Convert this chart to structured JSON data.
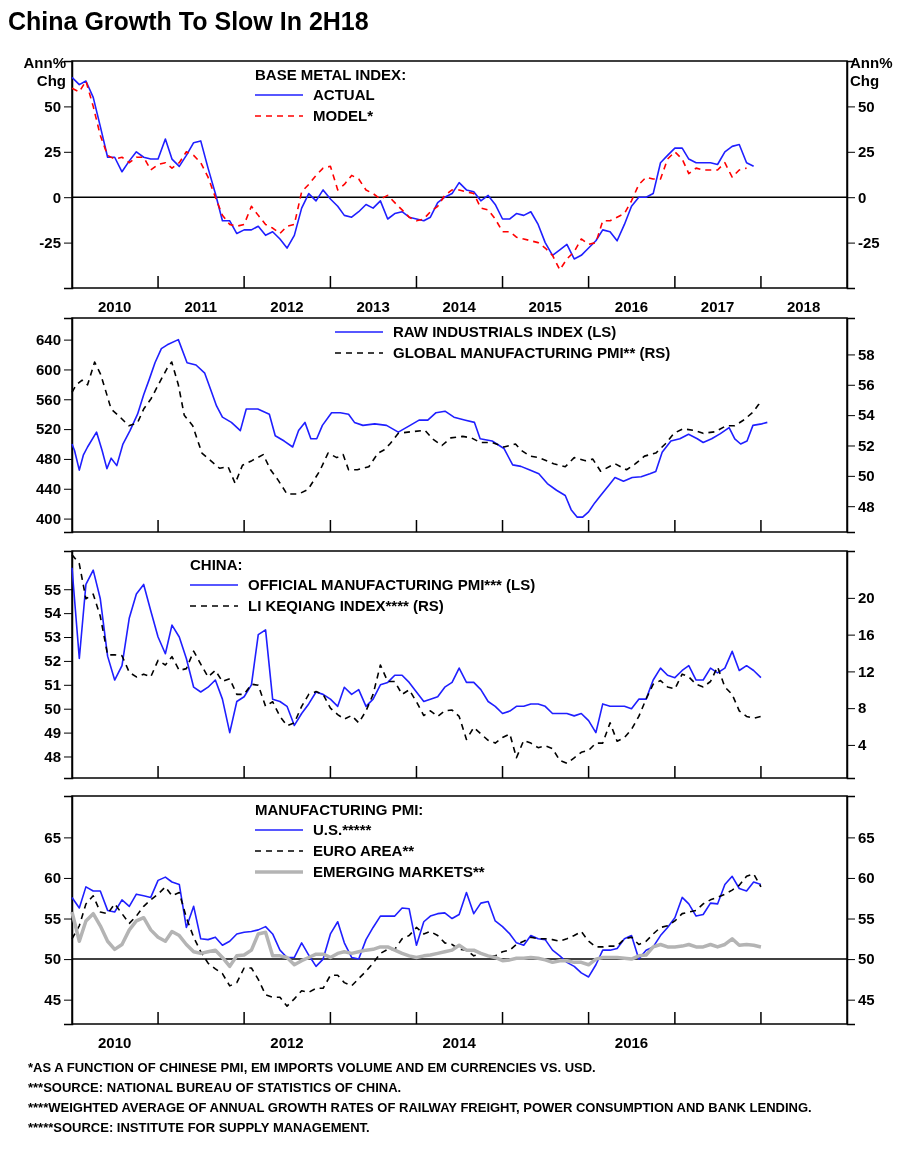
{
  "chart_data": [
    {
      "type": "line",
      "title": "China Growth To Slow In 2H18",
      "ylabel": "Ann% Chg",
      "y2label": "Ann% Chg",
      "legend_title": "BASE METAL INDEX:",
      "legend": "top",
      "xlim": [
        "2010-01",
        "2019-01"
      ],
      "xticks": [
        {
          "value": "2010-07",
          "label": "2010"
        },
        {
          "value": "2011-01",
          "label": null
        },
        {
          "value": "2011-07",
          "label": "2011"
        },
        {
          "value": "2012-01",
          "label": null
        },
        {
          "value": "2012-07",
          "label": "2012"
        },
        {
          "value": "2013-01",
          "label": null
        },
        {
          "value": "2013-07",
          "label": "2013"
        },
        {
          "value": "2014-01",
          "label": null
        },
        {
          "value": "2014-07",
          "label": "2014"
        },
        {
          "value": "2015-01",
          "label": null
        },
        {
          "value": "2015-07",
          "label": "2015"
        },
        {
          "value": "2016-01",
          "label": null
        },
        {
          "value": "2016-07",
          "label": "2016"
        },
        {
          "value": "2017-01",
          "label": null
        },
        {
          "value": "2017-07",
          "label": "2017"
        },
        {
          "value": "2018-01",
          "label": null
        },
        {
          "value": "2018-07",
          "label": "2018"
        }
      ],
      "ylim": [
        -50,
        75
      ],
      "yticks": [
        -25,
        0,
        25,
        50
      ],
      "y2lim": [
        -50,
        75
      ],
      "y2ticks": [
        -25,
        0,
        25,
        50
      ],
      "ref_lines": [
        {
          "axis": "y",
          "value": 0,
          "color": "#000000"
        }
      ],
      "x": [
        "2010-01",
        "2010-02",
        "2010-03",
        "2010-04",
        "2010-05",
        "2010-06",
        "2010-07",
        "2010-08",
        "2010-09",
        "2010-10",
        "2010-11",
        "2010-12",
        "2011-01",
        "2011-02",
        "2011-03",
        "2011-04",
        "2011-05",
        "2011-06",
        "2011-07",
        "2011-08",
        "2011-09",
        "2011-10",
        "2011-11",
        "2011-12",
        "2012-01",
        "2012-02",
        "2012-03",
        "2012-04",
        "2012-05",
        "2012-06",
        "2012-07",
        "2012-08",
        "2012-09",
        "2012-10",
        "2012-11",
        "2012-12",
        "2013-01",
        "2013-02",
        "2013-03",
        "2013-04",
        "2013-05",
        "2013-06",
        "2013-07",
        "2013-08",
        "2013-09",
        "2013-10",
        "2013-11",
        "2013-12",
        "2014-01",
        "2014-02",
        "2014-03",
        "2014-04",
        "2014-05",
        "2014-06",
        "2014-07",
        "2014-08",
        "2014-09",
        "2014-10",
        "2014-11",
        "2014-12",
        "2015-01",
        "2015-02",
        "2015-03",
        "2015-04",
        "2015-05",
        "2015-06",
        "2015-07",
        "2015-08",
        "2015-09",
        "2015-10",
        "2015-11",
        "2015-12",
        "2016-01",
        "2016-02",
        "2016-03",
        "2016-04",
        "2016-05",
        "2016-06",
        "2016-07",
        "2016-08",
        "2016-09",
        "2016-10",
        "2016-11",
        "2016-12",
        "2017-01",
        "2017-02",
        "2017-03",
        "2017-04",
        "2017-05",
        "2017-06",
        "2017-07",
        "2017-08",
        "2017-09",
        "2017-10",
        "2017-11",
        "2017-12"
      ],
      "series": [
        {
          "name": "ACTUAL",
          "color": "#1f1fff",
          "line_style": "solid",
          "values": [
            66,
            62,
            64,
            55,
            39,
            22,
            22,
            14,
            20,
            25,
            22,
            21,
            21,
            32,
            21,
            17,
            23,
            30,
            31,
            16,
            2,
            -13,
            -13,
            -20,
            -18,
            -18,
            -16,
            -21,
            -19,
            -23,
            -28,
            -21,
            -6,
            2,
            -2,
            4,
            -1,
            -5,
            -10,
            -11,
            -8,
            -4,
            -6,
            -2,
            -12,
            -9,
            -8,
            -11,
            -12,
            -13,
            -11,
            -3,
            0,
            2,
            8,
            4,
            3,
            -2,
            1,
            -4,
            -12,
            -12,
            -9,
            -10,
            -8,
            -15,
            -25,
            -32,
            -29,
            -26,
            -34,
            -32,
            -28,
            -24,
            -18,
            -19,
            -24,
            -15,
            -5,
            0,
            0,
            2,
            19,
            23,
            27,
            27,
            21,
            19,
            19,
            19,
            18,
            25,
            28,
            29,
            19,
            17
          ]
        },
        {
          "name": "MODEL*",
          "color": "#ff0000",
          "line_style": "dashed",
          "values": [
            60,
            58,
            64,
            50,
            34,
            23,
            21,
            22,
            19,
            22,
            22,
            15,
            18,
            19,
            16,
            19,
            25,
            23,
            19,
            11,
            0,
            -10,
            -15,
            -16,
            -15,
            -5,
            -10,
            -15,
            -17,
            -20,
            -16,
            -15,
            3,
            7,
            12,
            16,
            17,
            4,
            7,
            12,
            10,
            4,
            2,
            -1,
            1,
            -3,
            -7,
            -11,
            -13,
            -12,
            -8,
            -5,
            1,
            4,
            4,
            3,
            2,
            -6,
            -7,
            -12,
            -19,
            -19,
            -22,
            -23,
            -24,
            -25,
            -28,
            -32,
            -40,
            -34,
            -30,
            -23,
            -26,
            -25,
            -13,
            -13,
            -11,
            -9,
            -2,
            7,
            11,
            10,
            10,
            21,
            25,
            21,
            13,
            16,
            15,
            15,
            15,
            19,
            11,
            15,
            16,
            null
          ]
        }
      ]
    },
    {
      "type": "line",
      "legend": "top right",
      "tick_labels": "y",
      "xlim": [
        "2010-01",
        "2019-01"
      ],
      "xticks": [
        {
          "value": "2011-01",
          "label": null
        },
        {
          "value": "2012-01",
          "label": null
        },
        {
          "value": "2013-01",
          "label": null
        },
        {
          "value": "2014-01",
          "label": null
        },
        {
          "value": "2015-01",
          "label": null
        },
        {
          "value": "2016-01",
          "label": null
        },
        {
          "value": "2017-01",
          "label": null
        },
        {
          "value": "2018-01",
          "label": null
        }
      ],
      "ylim": [
        382,
        669
      ],
      "yticks": [
        400,
        440,
        480,
        520,
        560,
        600,
        640
      ],
      "y2lim": [
        46.3,
        60.4
      ],
      "y2ticks": [
        48,
        50,
        52,
        54,
        56,
        58
      ],
      "series": [
        {
          "name": "RAW INDUSTRIALS INDEX (LS)",
          "color": "#1f1fff",
          "line_style": "solid",
          "x": [
            "2010-01-01",
            "2010-01-12",
            "2010-02-01",
            "2010-02-18",
            "2010-03-08",
            "2010-04-15",
            "2010-05-09",
            "2010-05-29",
            "2010-06-16",
            "2010-07-10",
            "2010-08-05",
            "2010-09-04",
            "2010-10-06",
            "2010-11-01",
            "2010-11-25",
            "2010-12-19",
            "2011-01-15",
            "2011-02-09",
            "2011-03-28",
            "2011-05-04",
            "2011-06-11",
            "2011-07-18",
            "2011-08-12",
            "2011-09-06",
            "2011-10-01",
            "2011-11-08",
            "2011-12-16",
            "2012-01-10",
            "2012-02-28",
            "2012-04-17",
            "2012-05-12",
            "2012-06-19",
            "2012-07-25",
            "2012-08-19",
            "2012-09-15",
            "2012-10-10",
            "2012-11-04",
            "2012-11-28",
            "2013-01-06",
            "2013-02-12",
            "2013-03-19",
            "2013-04-13",
            "2013-05-19",
            "2013-07-08",
            "2013-08-27",
            "2013-10-16",
            "2013-12-05",
            "2014-01-12",
            "2014-02-18",
            "2014-03-25",
            "2014-05-02",
            "2014-06-09",
            "2014-07-28",
            "2014-09-04",
            "2014-09-28",
            "2014-11-18",
            "2015-01-07",
            "2015-02-13",
            "2015-03-20",
            "2015-04-27",
            "2015-06-04",
            "2015-07-10",
            "2015-08-18",
            "2015-09-24",
            "2015-10-19",
            "2015-11-13",
            "2015-12-07",
            "2016-01-01",
            "2016-01-27",
            "2016-02-21",
            "2016-03-28",
            "2016-04-22",
            "2016-05-28",
            "2016-07-04",
            "2016-08-11",
            "2016-09-17",
            "2016-10-12",
            "2016-11-08",
            "2016-12-15",
            "2017-01-22",
            "2017-02-28",
            "2017-04-06",
            "2017-05-01",
            "2017-06-06",
            "2017-07-13",
            "2017-08-19",
            "2017-09-12",
            "2017-10-07",
            "2017-11-03",
            "2017-11-28",
            "2018-01-04",
            "2018-01-28"
          ],
          "values": [
            500,
            491,
            465,
            485,
            496,
            516,
            491,
            467,
            481,
            471,
            500,
            518,
            540,
            566,
            587,
            609,
            628,
            633,
            640,
            609,
            606,
            595,
            573,
            551,
            536,
            529,
            518,
            547,
            547,
            540,
            511,
            504,
            496,
            518,
            529,
            507,
            507,
            525,
            542,
            542,
            540,
            529,
            525,
            527,
            525,
            516,
            525,
            532,
            532,
            542,
            544,
            536,
            532,
            529,
            507,
            504,
            494,
            472,
            470,
            465,
            460,
            447,
            438,
            431,
            412,
            402,
            402,
            409,
            421,
            431,
            445,
            455,
            450,
            455,
            456,
            460,
            463,
            489,
            504,
            507,
            513,
            507,
            502,
            507,
            514,
            522,
            507,
            500,
            504,
            525,
            527,
            529
          ]
        },
        {
          "name": "GLOBAL MANUFACTURING PMI** (RS)",
          "color": "#000000",
          "line_style": "dashed",
          "axis": "y2",
          "x": [
            "2010-01-01",
            "2010-01-19",
            "2010-02-13",
            "2010-03-08",
            "2010-04-07",
            "2010-05-02",
            "2010-05-22",
            "2010-06-16",
            "2010-07-22",
            "2010-08-30",
            "2010-10-06",
            "2010-11-01",
            "2010-12-03",
            "2011-01-02",
            "2011-02-09",
            "2011-02-28",
            "2011-03-28",
            "2011-04-22",
            "2011-05-28",
            "2011-07-06",
            "2011-08-12",
            "2011-09-19",
            "2011-10-25",
            "2011-11-24",
            "2011-12-25",
            "2012-02-03",
            "2012-03-22",
            "2012-04-22",
            "2012-05-25",
            "2012-07-01",
            "2012-08-19",
            "2012-09-28",
            "2012-11-16",
            "2012-12-22",
            "2013-01-28",
            "2013-02-24",
            "2013-03-19",
            "2013-04-25",
            "2013-06-13",
            "2013-07-22",
            "2013-08-16",
            "2013-09-10",
            "2013-10-16",
            "2013-12-05",
            "2014-02-06",
            "2014-03-13",
            "2014-04-19",
            "2014-05-27",
            "2014-07-16",
            "2014-08-22",
            "2014-09-28",
            "2014-11-18",
            "2015-01-07",
            "2015-02-25",
            "2015-03-20",
            "2015-04-27",
            "2015-06-04",
            "2015-08-06",
            "2015-09-24",
            "2015-11-01",
            "2015-12-19",
            "2016-01-19",
            "2016-02-21",
            "2016-03-28",
            "2016-04-22",
            "2016-06-10",
            "2016-07-18",
            "2016-08-25",
            "2016-10-12",
            "2016-11-21",
            "2016-12-28",
            "2017-02-04",
            "2017-03-22",
            "2017-05-01",
            "2017-06-19",
            "2017-08-07",
            "2017-09-12",
            "2017-10-22",
            "2017-11-28",
            "2017-12-22",
            "2018-01-04"
          ],
          "values": [
            55.5,
            56.0,
            56.3,
            56.0,
            57.5,
            56.7,
            55.7,
            54.4,
            53.9,
            53.3,
            53.5,
            54.4,
            55.1,
            56.0,
            57.1,
            57.5,
            56.0,
            54.0,
            53.3,
            51.5,
            51.0,
            50.5,
            50.6,
            49.5,
            50.7,
            51.0,
            51.4,
            50.4,
            49.7,
            48.8,
            48.8,
            49.1,
            50.3,
            51.5,
            51.2,
            51.4,
            50.4,
            50.4,
            50.6,
            51.5,
            51.7,
            52.1,
            52.8,
            52.9,
            53.0,
            52.4,
            52.0,
            52.5,
            52.6,
            52.5,
            52.2,
            52.2,
            51.9,
            52.1,
            51.7,
            51.3,
            51.2,
            50.8,
            50.6,
            51.2,
            51.0,
            51.1,
            50.3,
            50.6,
            50.8,
            50.4,
            50.8,
            51.3,
            51.5,
            52.1,
            52.8,
            53.1,
            53.0,
            52.8,
            52.9,
            53.3,
            53.3,
            53.7,
            54.2,
            54.7,
            54.5
          ]
        }
      ]
    },
    {
      "type": "line",
      "legend_title": "CHINA:",
      "legend": "top left",
      "tick_labels": "y",
      "xlim": [
        "2010-01",
        "2019-01"
      ],
      "xticks": [
        {
          "value": "2011-01",
          "label": null
        },
        {
          "value": "2012-01",
          "label": null
        },
        {
          "value": "2013-01",
          "label": null
        },
        {
          "value": "2014-01",
          "label": null
        },
        {
          "value": "2015-01",
          "label": null
        },
        {
          "value": "2016-01",
          "label": null
        },
        {
          "value": "2017-01",
          "label": null
        },
        {
          "value": "2018-01",
          "label": null
        }
      ],
      "ylim": [
        47.1,
        56.6
      ],
      "yticks": [
        48,
        49,
        50,
        51,
        52,
        53,
        54,
        55
      ],
      "y2lim": [
        0.4,
        25.1
      ],
      "y2ticks": [
        4,
        8,
        12,
        16,
        20
      ],
      "x": [
        "2010-01",
        "2010-02",
        "2010-03",
        "2010-04",
        "2010-05",
        "2010-06",
        "2010-07",
        "2010-08",
        "2010-09",
        "2010-10",
        "2010-11",
        "2010-12",
        "2011-01",
        "2011-02",
        "2011-03",
        "2011-04",
        "2011-05",
        "2011-06",
        "2011-07",
        "2011-08",
        "2011-09",
        "2011-10",
        "2011-11",
        "2011-12",
        "2012-01",
        "2012-02",
        "2012-03",
        "2012-04",
        "2012-05",
        "2012-06",
        "2012-07",
        "2012-08",
        "2012-09",
        "2012-10",
        "2012-11",
        "2012-12",
        "2013-01",
        "2013-02",
        "2013-03",
        "2013-04",
        "2013-05",
        "2013-06",
        "2013-07",
        "2013-08",
        "2013-09",
        "2013-10",
        "2013-11",
        "2013-12",
        "2014-01",
        "2014-02",
        "2014-03",
        "2014-04",
        "2014-05",
        "2014-06",
        "2014-07",
        "2014-08",
        "2014-09",
        "2014-10",
        "2014-11",
        "2014-12",
        "2015-01",
        "2015-02",
        "2015-03",
        "2015-04",
        "2015-05",
        "2015-06",
        "2015-07",
        "2015-08",
        "2015-09",
        "2015-10",
        "2015-11",
        "2015-12",
        "2016-01",
        "2016-02",
        "2016-03",
        "2016-04",
        "2016-05",
        "2016-06",
        "2016-07",
        "2016-08",
        "2016-09",
        "2016-10",
        "2016-11",
        "2016-12",
        "2017-01",
        "2017-02",
        "2017-03",
        "2017-04",
        "2017-05",
        "2017-06",
        "2017-07",
        "2017-08",
        "2017-09",
        "2017-10",
        "2017-11",
        "2017-12",
        "2018-01"
      ],
      "series": [
        {
          "name": "OFFICIAL MANUFACTURING PMI*** (LS)",
          "color": "#1f1fff",
          "line_style": "solid",
          "values": [
            55.9,
            52.1,
            55.2,
            55.8,
            54.6,
            52.2,
            51.2,
            51.8,
            53.8,
            54.8,
            55.2,
            54.1,
            53.0,
            52.3,
            53.5,
            53.0,
            52.1,
            50.9,
            50.7,
            50.9,
            51.2,
            50.4,
            49.0,
            50.3,
            50.5,
            51.0,
            53.1,
            53.3,
            50.4,
            50.3,
            50.1,
            49.3,
            49.8,
            50.2,
            50.7,
            50.6,
            50.4,
            50.1,
            50.9,
            50.6,
            50.8,
            50.1,
            50.4,
            51.0,
            51.1,
            51.4,
            51.4,
            51.1,
            50.7,
            50.3,
            50.4,
            50.5,
            50.9,
            51.1,
            51.7,
            51.1,
            51.1,
            50.8,
            50.3,
            50.1,
            49.8,
            49.9,
            50.1,
            50.1,
            50.2,
            50.2,
            50.1,
            49.8,
            49.8,
            49.8,
            49.7,
            49.8,
            49.5,
            49.0,
            50.2,
            50.1,
            50.1,
            50.1,
            50.0,
            50.4,
            50.4,
            51.2,
            51.7,
            51.4,
            51.3,
            51.6,
            51.8,
            51.2,
            51.2,
            51.7,
            51.5,
            51.7,
            52.4,
            51.6,
            51.8,
            51.6,
            51.3
          ]
        },
        {
          "name": "LI KEQIANG INDEX**** (RS)",
          "color": "#000000",
          "line_style": "dashed",
          "axis": "y2",
          "values": [
            24.7,
            23.7,
            19.9,
            20.4,
            18.0,
            13.8,
            13.8,
            13.7,
            11.9,
            11.4,
            11.7,
            11.4,
            13.2,
            12.7,
            13.6,
            12.1,
            12.3,
            14.2,
            12.8,
            11.4,
            12.1,
            10.9,
            11.2,
            9.5,
            9.5,
            10.6,
            10.5,
            8.2,
            8.7,
            7.1,
            6.1,
            6.4,
            8.2,
            9.5,
            9.8,
            9.5,
            8.0,
            7.3,
            6.8,
            7.2,
            6.4,
            7.7,
            9.5,
            12.7,
            10.9,
            10.9,
            9.5,
            10.0,
            8.7,
            7.2,
            7.7,
            7.1,
            7.7,
            7.8,
            7.1,
            4.6,
            5.9,
            5.2,
            4.5,
            4.2,
            4.8,
            5.2,
            2.6,
            4.5,
            4.2,
            3.7,
            3.9,
            3.6,
            2.3,
            2.0,
            2.6,
            3.2,
            3.4,
            4.2,
            4.2,
            6.4,
            4.4,
            4.8,
            5.7,
            7.1,
            9.0,
            10.6,
            11.0,
            10.3,
            10.1,
            11.7,
            11.4,
            10.6,
            10.3,
            10.9,
            12.5,
            10.3,
            9.5,
            7.7,
            7.1,
            6.9,
            7.1
          ]
        }
      ]
    },
    {
      "type": "line",
      "legend_title": "MANUFACTURING PMI:",
      "legend": "top",
      "xlim": [
        "2010-01",
        "2019-01"
      ],
      "xticks": [
        {
          "value": "2010-07",
          "label": "2010"
        },
        {
          "value": "2011-01",
          "label": null
        },
        {
          "value": "2012-01",
          "label": null
        },
        {
          "value": "2012-07",
          "label": "2012"
        },
        {
          "value": "2013-01",
          "label": null
        },
        {
          "value": "2014-01",
          "label": null
        },
        {
          "value": "2014-07",
          "label": "2014"
        },
        {
          "value": "2015-01",
          "label": null
        },
        {
          "value": "2016-01",
          "label": null
        },
        {
          "value": "2016-07",
          "label": "2016"
        },
        {
          "value": "2017-01",
          "label": null
        },
        {
          "value": "2018-01",
          "label": null
        }
      ],
      "ylim": [
        42,
        70.1
      ],
      "yticks": [
        45,
        50,
        55,
        60,
        65
      ],
      "y2lim": [
        42,
        70.1
      ],
      "y2ticks": [
        45,
        50,
        55,
        60,
        65
      ],
      "ref_lines": [
        {
          "axis": "y",
          "value": 50,
          "color": "#000000"
        }
      ],
      "annotations": [
        "*AS A FUNCTION OF CHINESE PMI, EM IMPORTS VOLUME AND EM CURRENCIES VS. USD.",
        "***SOURCE: NATIONAL BUREAU OF STATISTICS OF CHINA.",
        "****WEIGHTED AVERAGE OF ANNUAL GROWTH RATES OF RAILWAY FREIGHT, POWER CONSUMPTION AND BANK LENDING.",
        "*****SOURCE: INSTITUTE FOR SUPPLY MANAGEMENT."
      ],
      "x": [
        "2010-01",
        "2010-02",
        "2010-03",
        "2010-04",
        "2010-05",
        "2010-06",
        "2010-07",
        "2010-08",
        "2010-09",
        "2010-10",
        "2010-11",
        "2010-12",
        "2011-01",
        "2011-02",
        "2011-03",
        "2011-04",
        "2011-05",
        "2011-06",
        "2011-07",
        "2011-08",
        "2011-09",
        "2011-10",
        "2011-11",
        "2011-12",
        "2012-01",
        "2012-02",
        "2012-03",
        "2012-04",
        "2012-05",
        "2012-06",
        "2012-07",
        "2012-08",
        "2012-09",
        "2012-10",
        "2012-11",
        "2012-12",
        "2013-01",
        "2013-02",
        "2013-03",
        "2013-04",
        "2013-05",
        "2013-06",
        "2013-07",
        "2013-08",
        "2013-09",
        "2013-10",
        "2013-11",
        "2013-12",
        "2014-01",
        "2014-02",
        "2014-03",
        "2014-04",
        "2014-05",
        "2014-06",
        "2014-07",
        "2014-08",
        "2014-09",
        "2014-10",
        "2014-11",
        "2014-12",
        "2015-01",
        "2015-02",
        "2015-03",
        "2015-04",
        "2015-05",
        "2015-06",
        "2015-07",
        "2015-08",
        "2015-09",
        "2015-10",
        "2015-11",
        "2015-12",
        "2016-01",
        "2016-02",
        "2016-03",
        "2016-04",
        "2016-05",
        "2016-06",
        "2016-07",
        "2016-08",
        "2016-09",
        "2016-10",
        "2016-11",
        "2016-12",
        "2017-01",
        "2017-02",
        "2017-03",
        "2017-04",
        "2017-05",
        "2017-06",
        "2017-07",
        "2017-08",
        "2017-09",
        "2017-10",
        "2017-11",
        "2017-12",
        "2018-01"
      ],
      "series": [
        {
          "name": "U.S.*****",
          "color": "#1f1fff",
          "line_style": "solid",
          "values": [
            57.6,
            56.3,
            58.9,
            58.4,
            58.4,
            56.0,
            55.8,
            57.3,
            56.5,
            58.0,
            57.8,
            57.6,
            59.7,
            60.1,
            59.5,
            59.2,
            53.9,
            56.5,
            52.5,
            52.4,
            52.7,
            51.7,
            52.2,
            53.1,
            53.3,
            53.4,
            53.6,
            54.0,
            53.1,
            51.1,
            50.2,
            50.2,
            52.0,
            50.5,
            49.1,
            50.0,
            53.1,
            54.6,
            52.0,
            50.2,
            50.0,
            52.4,
            53.9,
            55.3,
            55.3,
            55.3,
            56.3,
            56.2,
            51.7,
            54.6,
            55.3,
            55.6,
            55.7,
            55.0,
            55.5,
            58.2,
            55.6,
            56.9,
            57.1,
            54.7,
            54.0,
            53.1,
            52.0,
            51.7,
            52.9,
            52.5,
            52.4,
            51.1,
            50.4,
            49.6,
            49.1,
            48.3,
            47.8,
            49.3,
            51.1,
            51.1,
            51.3,
            52.5,
            52.9,
            50.0,
            51.1,
            51.5,
            52.9,
            53.9,
            55.1,
            57.6,
            56.8,
            55.3,
            55.5,
            56.9,
            56.8,
            59.2,
            60.2,
            58.7,
            58.4,
            59.5,
            59.2
          ]
        },
        {
          "name": "EURO AREA**",
          "color": "#000000",
          "line_style": "dashed",
          "values": [
            52.5,
            54.1,
            56.8,
            57.8,
            55.8,
            55.6,
            56.8,
            55.6,
            54.4,
            55.3,
            56.5,
            57.3,
            58.0,
            58.9,
            57.8,
            58.2,
            55.1,
            52.7,
            50.9,
            49.5,
            48.8,
            48.2,
            46.7,
            47.1,
            48.9,
            48.9,
            47.5,
            45.6,
            45.3,
            45.3,
            44.2,
            45.1,
            46.1,
            45.9,
            46.4,
            46.4,
            48.0,
            48.0,
            47.1,
            46.7,
            47.6,
            48.5,
            49.5,
            50.7,
            51.2,
            51.2,
            52.5,
            52.9,
            53.9,
            53.1,
            53.4,
            52.9,
            52.0,
            51.8,
            51.2,
            51.1,
            50.4,
            50.7,
            50.4,
            50.4,
            50.9,
            51.1,
            51.8,
            52.2,
            52.7,
            52.5,
            52.5,
            52.4,
            52.2,
            52.5,
            52.9,
            53.4,
            52.2,
            51.5,
            51.5,
            51.6,
            51.6,
            52.5,
            52.7,
            51.8,
            52.2,
            53.1,
            53.9,
            54.1,
            54.7,
            55.6,
            55.8,
            56.0,
            56.8,
            57.3,
            57.6,
            58.0,
            58.5,
            59.1,
            60.2,
            60.5,
            58.9
          ]
        },
        {
          "name": "EMERGING MARKETS**",
          "color": "#b4b4b4",
          "line_style": "solid",
          "values": [
            55.8,
            52.2,
            54.7,
            55.6,
            54.1,
            52.2,
            51.2,
            51.8,
            53.6,
            54.7,
            55.1,
            53.6,
            52.7,
            52.2,
            53.4,
            52.9,
            51.8,
            50.9,
            50.7,
            50.9,
            51.1,
            50.2,
            49.1,
            50.4,
            50.5,
            51.1,
            53.1,
            53.3,
            50.4,
            50.4,
            50.2,
            49.3,
            49.8,
            50.2,
            50.6,
            50.6,
            50.2,
            50.7,
            50.9,
            50.7,
            50.9,
            51.1,
            51.2,
            51.5,
            51.5,
            51.1,
            50.7,
            50.4,
            50.2,
            50.4,
            50.5,
            50.7,
            50.9,
            51.1,
            51.7,
            51.1,
            51.1,
            50.7,
            50.4,
            50.2,
            49.8,
            49.9,
            50.1,
            50.1,
            50.2,
            50.1,
            49.9,
            49.6,
            49.8,
            49.8,
            49.6,
            49.6,
            49.3,
            50.0,
            50.2,
            50.2,
            50.2,
            50.1,
            50.0,
            50.4,
            50.5,
            51.5,
            51.8,
            51.5,
            51.5,
            51.6,
            51.8,
            51.5,
            51.5,
            51.8,
            51.5,
            51.8,
            52.5,
            51.7,
            51.8,
            51.7,
            51.5
          ]
        }
      ]
    }
  ]
}
